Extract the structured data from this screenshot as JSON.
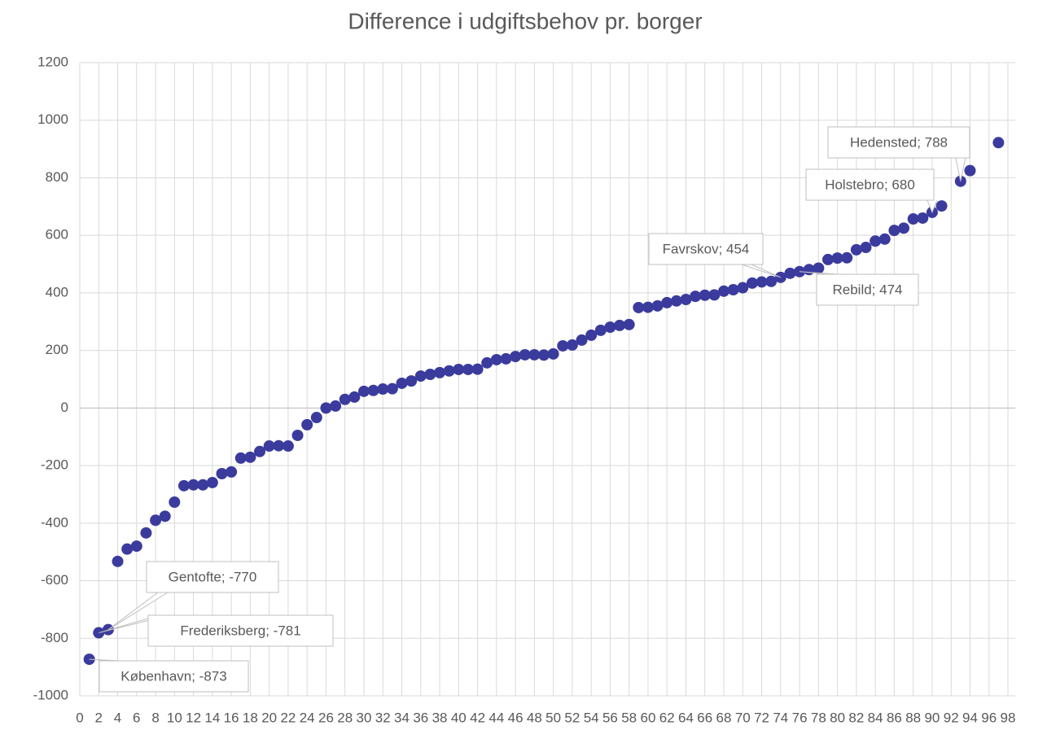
{
  "chart_data": {
    "type": "scatter",
    "title": "Difference i udgiftsbehov pr. borger",
    "color": "#3b3b9e",
    "x": [
      1,
      2,
      3,
      4,
      5,
      6,
      7,
      8,
      9,
      10,
      11,
      12,
      13,
      14,
      15,
      16,
      17,
      18,
      19,
      20,
      21,
      22,
      23,
      24,
      25,
      26,
      27,
      28,
      29,
      30,
      31,
      32,
      33,
      34,
      35,
      36,
      37,
      38,
      39,
      40,
      41,
      42,
      43,
      44,
      45,
      46,
      47,
      48,
      49,
      50,
      51,
      52,
      53,
      54,
      55,
      56,
      57,
      58,
      59,
      60,
      61,
      62,
      63,
      64,
      65,
      66,
      67,
      68,
      69,
      70,
      71,
      72,
      73,
      74,
      75,
      76,
      77,
      78,
      79,
      80,
      81,
      82,
      83,
      84,
      85,
      86,
      87,
      88,
      89,
      90,
      91,
      93,
      94,
      97
    ],
    "values": [
      -873,
      -781,
      -770,
      -533,
      -490,
      -480,
      -434,
      -390,
      -376,
      -327,
      -270,
      -267,
      -267,
      -259,
      -228,
      -222,
      -174,
      -171,
      -151,
      -132,
      -131,
      -132,
      -95,
      -58,
      -33,
      0,
      7,
      30,
      38,
      58,
      61,
      66,
      67,
      86,
      94,
      111,
      117,
      123,
      129,
      134,
      134,
      135,
      157,
      168,
      171,
      179,
      185,
      185,
      184,
      188,
      216,
      219,
      236,
      253,
      270,
      281,
      287,
      290,
      349,
      350,
      355,
      366,
      372,
      377,
      388,
      392,
      393,
      406,
      411,
      418,
      434,
      438,
      440,
      454,
      468,
      474,
      481,
      486,
      516,
      521,
      522,
      550,
      558,
      580,
      587,
      617,
      625,
      657,
      660,
      680,
      702,
      788,
      825,
      922
    ],
    "annotations": [
      "København; -873",
      "Frederiksberg; -781",
      "Gentofte; -770",
      "Favrskov; 454",
      "Rebild; 474",
      "Holstebro; 680",
      "Hedensted; 788"
    ],
    "xlim": [
      0,
      98
    ],
    "xticks": [
      0,
      2,
      4,
      6,
      8,
      10,
      12,
      14,
      16,
      18,
      20,
      22,
      24,
      26,
      28,
      30,
      32,
      34,
      36,
      38,
      40,
      42,
      44,
      46,
      48,
      50,
      52,
      54,
      56,
      58,
      60,
      62,
      64,
      66,
      68,
      70,
      72,
      74,
      76,
      78,
      80,
      82,
      84,
      86,
      88,
      90,
      92,
      94,
      96,
      98
    ],
    "ylim": [
      -1000,
      1200
    ],
    "yticks": [
      -1000,
      -800,
      -600,
      -400,
      -200,
      0,
      200,
      400,
      600,
      800,
      1000,
      1200
    ],
    "grid": true
  }
}
